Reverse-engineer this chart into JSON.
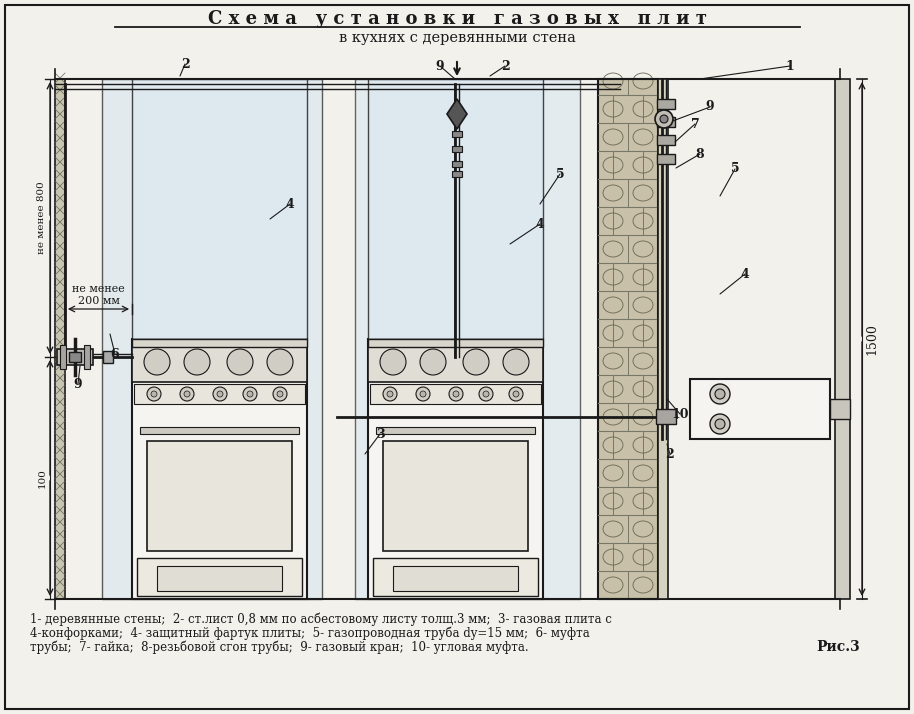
{
  "title_line1": "С х е м а   у с т а н о в к и   г а з о в ы х   п л и т",
  "title_line2": "в кухнях с деревянными стена",
  "caption_line1": "1- деревянные стены;  2- ст.лист 0,8 мм по асбестовому листу толщ.3 мм;  3- газовая плита с",
  "caption_line2": "4-конфорками;  4- защитный фартук плиты;  5- газопроводная труба dy=15 мм;  6- муфта",
  "caption_line3": "трубы;  7- гайка;  8-резьбовой сгон трубы;  9- газовый кран;  10- угловая муфта.",
  "fig_label": "Рис.3",
  "bg_color": "#f2f1ec",
  "line_color": "#1a1a1a",
  "shield_fill": "#dce8f0",
  "stove_fill": "#f5f4f0",
  "wall_fill": "#c8c5b0"
}
